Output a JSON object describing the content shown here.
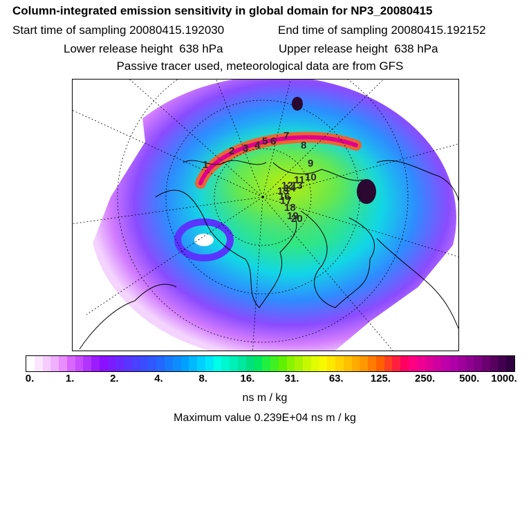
{
  "header": {
    "title": "Column-integrated emission sensitivity in global domain for NP3_20080415",
    "start_time": "Start time of sampling 20080415.192030",
    "end_time": "End time of sampling 20080415.192152",
    "lower_height": "Lower release height  638 hPa",
    "upper_height": "Upper release height  638 hPa",
    "tracer_note": "Passive tracer used, meteorological data are from GFS"
  },
  "colorbar": {
    "colors": [
      "#ffffff",
      "#fbe6ff",
      "#f6ccff",
      "#f0b0ff",
      "#e88cff",
      "#d966ff",
      "#c84dff",
      "#b234ff",
      "#9b1cff",
      "#8a10ff",
      "#7a1cff",
      "#6a28ff",
      "#5a34ff",
      "#4a40ff",
      "#3a4cff",
      "#3058ff",
      "#2468ff",
      "#1a7aff",
      "#0e8cff",
      "#00a0ff",
      "#00b8ff",
      "#00d0ff",
      "#00e8f8",
      "#00ffe8",
      "#00f8d0",
      "#00f0b8",
      "#00e8a0",
      "#00e080",
      "#00e860",
      "#20f040",
      "#40f020",
      "#60f000",
      "#88f400",
      "#a8f400",
      "#c8f800",
      "#e0fc00",
      "#f8f800",
      "#ffe800",
      "#ffd400",
      "#ffc000",
      "#ffac00",
      "#ff9800",
      "#ff7c00",
      "#ff6000",
      "#ff4020",
      "#ff2040",
      "#ff0060",
      "#ff0080",
      "#f00090",
      "#e00098",
      "#d000a0",
      "#c000a8",
      "#b000a8",
      "#a0009c",
      "#900090",
      "#800084",
      "#6c0070",
      "#580060",
      "#440050",
      "#300040"
    ],
    "tick_labels": [
      "0.",
      "1.",
      "2.",
      "4.",
      "8.",
      "16.",
      "31.",
      "63.",
      "125.",
      "250.",
      "500.",
      "1000."
    ],
    "unit": "ns m / kg",
    "max_value": "Maximum value  0.239E+04 ns m / kg"
  },
  "map": {
    "trajectory_labels": [
      "1",
      "2",
      "3",
      "4",
      "5",
      "6",
      "7",
      "8",
      "9",
      "10",
      "11",
      "12",
      "13",
      "14",
      "15",
      "16",
      "17",
      "18",
      "19",
      "20"
    ]
  }
}
